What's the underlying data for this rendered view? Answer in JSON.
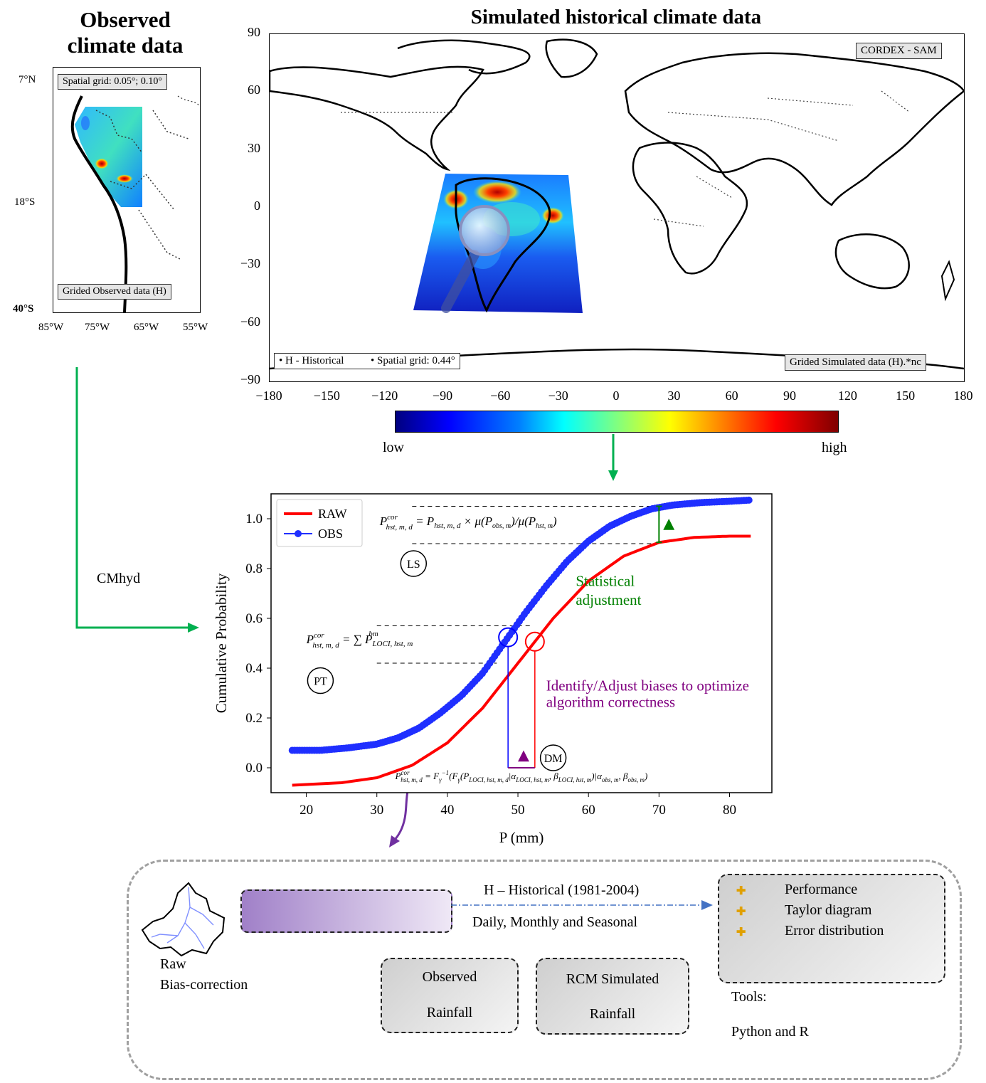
{
  "observed_panel": {
    "title_line1": "Observed",
    "title_line2": "climate data",
    "grid_label": "Spatial grid: 0.05°; 0.10°",
    "data_label": "Grided Observed data (H)",
    "lat_ticks": [
      "7°N",
      "18°S",
      "40°S"
    ],
    "lon_ticks": [
      "85°W",
      "75°W",
      "65°W",
      "55°W"
    ]
  },
  "simulated_panel": {
    "title": "Simulated historical climate data",
    "domain_label": "CORDEX - SAM",
    "historical_label": "• H - Historical",
    "grid_label": "• Spatial grid: 0.44°",
    "data_label": "Grided Simulated data (H).*nc",
    "lat_ticks": [
      "90",
      "60",
      "30",
      "0",
      "−30",
      "−60",
      "−90"
    ],
    "lon_ticks": [
      "−180",
      "−150",
      "−120",
      "−90",
      "−60",
      "−30",
      "0",
      "30",
      "60",
      "90",
      "120",
      "150",
      "180"
    ]
  },
  "colorbar": {
    "low_label": "low",
    "high_label": "high"
  },
  "flow": {
    "cmhyd_label": "CMhyd"
  },
  "chart_data": {
    "type": "line",
    "xlabel": "P (mm)",
    "ylabel": "Cumulative Probability",
    "xlim": [
      15,
      86
    ],
    "ylim": [
      -0.1,
      1.1
    ],
    "xticks": [
      "20",
      "30",
      "40",
      "50",
      "60",
      "70",
      "80"
    ],
    "yticks": [
      "0.0",
      "0.2",
      "0.4",
      "0.6",
      "0.8",
      "1.0"
    ],
    "legend_position": "top-left",
    "series": [
      {
        "name": "RAW",
        "color": "#ff0000",
        "x": [
          18,
          25,
          30,
          35,
          40,
          45,
          50,
          55,
          60,
          65,
          70,
          75,
          80,
          83
        ],
        "y": [
          -0.07,
          -0.06,
          -0.04,
          0.01,
          0.1,
          0.24,
          0.42,
          0.6,
          0.75,
          0.85,
          0.905,
          0.925,
          0.93,
          0.93
        ]
      },
      {
        "name": "OBS",
        "color": "#1f2fff",
        "x": [
          18,
          22,
          26,
          30,
          33,
          36,
          39,
          42,
          45,
          48,
          51,
          54,
          57,
          60,
          63,
          66,
          69,
          72,
          76,
          80,
          83
        ],
        "y": [
          0.07,
          0.07,
          0.08,
          0.095,
          0.12,
          0.16,
          0.22,
          0.29,
          0.38,
          0.5,
          0.62,
          0.73,
          0.83,
          0.91,
          0.97,
          1.01,
          1.04,
          1.055,
          1.065,
          1.07,
          1.075
        ]
      }
    ],
    "annotations": {
      "ls_label": "LS",
      "pt_label": "PT",
      "dm_label": "DM",
      "statistical_line1": "Statistical",
      "statistical_line2": "adjustment",
      "identify_line1": "Identify/Adjust biases to optimize",
      "identify_line2": "algorithm correctness"
    }
  },
  "workflow": {
    "raw_label": "Raw",
    "bias_label": "Bias-correction",
    "historical_label": "H – Historical (1981-2004)",
    "time_scales_label": "Daily, Monthly and Seasonal",
    "observed_line1": "Observed",
    "observed_line2": "Rainfall",
    "rcm_line1": "RCM Simulated",
    "rcm_line2": "Rainfall",
    "results": [
      "Performance",
      "Taylor diagram",
      "Error distribution"
    ],
    "tools_label": "Tools:",
    "tools_value": "Python and  R"
  },
  "colors": {
    "flow_arrow": "#00b050",
    "purple_arrow": "#7030a0",
    "dashdot_arrow": "#4472c4",
    "green_text": "#008000",
    "purple_text": "#800080"
  }
}
